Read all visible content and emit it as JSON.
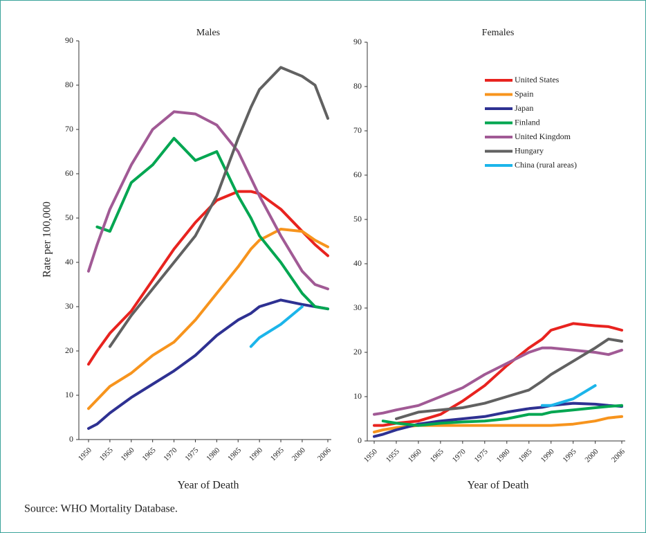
{
  "chart_data": [
    {
      "type": "line",
      "title": "Males",
      "ylabel": "Rate per 100,000",
      "xlabel": "Year of Death",
      "x": [
        1950,
        1952,
        1955,
        1960,
        1965,
        1970,
        1975,
        1980,
        1985,
        1988,
        1990,
        1995,
        2000,
        2003,
        2006
      ],
      "xlim": [
        1950,
        2006
      ],
      "xticks": [
        1950,
        1955,
        1960,
        1965,
        1970,
        1975,
        1980,
        1985,
        1990,
        1995,
        2000,
        2006
      ],
      "ylim": [
        0,
        90
      ],
      "yticks": [
        0,
        10,
        20,
        30,
        40,
        50,
        60,
        70,
        80,
        90
      ],
      "legend": false,
      "series": [
        {
          "color": "#e8231f",
          "values": [
            17,
            20,
            24,
            29,
            36,
            43,
            49,
            54,
            56,
            56,
            55.5,
            52,
            47,
            44,
            41.5
          ]
        },
        {
          "color": "#f7941d",
          "values": [
            7,
            9,
            12,
            15,
            19,
            22,
            27,
            33,
            39,
            43,
            45,
            47.5,
            47,
            45,
            43.5
          ]
        },
        {
          "color": "#2e3192",
          "values": [
            2.5,
            3.5,
            6,
            9.5,
            12.5,
            15.5,
            19,
            23.5,
            27,
            28.5,
            30,
            31.5,
            30.5,
            30,
            29.5
          ]
        },
        {
          "color": "#00a651",
          "values": [
            null,
            48,
            47,
            58,
            62,
            68,
            63,
            65,
            55,
            50,
            46,
            40,
            33,
            30,
            29.5
          ]
        },
        {
          "color": "#a15a95",
          "values": [
            38,
            44,
            52,
            62,
            70,
            74,
            73.5,
            71,
            65,
            59,
            55,
            46,
            38,
            35,
            34
          ]
        },
        {
          "color": "#616161",
          "values": [
            null,
            null,
            21,
            28,
            34,
            40,
            46,
            55,
            68,
            75,
            79,
            84,
            82,
            80,
            72.5
          ]
        },
        {
          "color": "#1cb5ea",
          "values": [
            null,
            null,
            null,
            null,
            null,
            null,
            null,
            null,
            null,
            21,
            23,
            26,
            30,
            null,
            null
          ]
        }
      ]
    },
    {
      "type": "line",
      "title": "Females",
      "xlabel": "Year of Death",
      "x": [
        1950,
        1952,
        1955,
        1960,
        1965,
        1970,
        1975,
        1980,
        1985,
        1988,
        1990,
        1995,
        2000,
        2003,
        2006
      ],
      "xlim": [
        1950,
        2006
      ],
      "xticks": [
        1950,
        1955,
        1960,
        1965,
        1970,
        1975,
        1980,
        1985,
        1990,
        1995,
        2000,
        2006
      ],
      "ylim": [
        0,
        90
      ],
      "yticks": [
        0,
        10,
        20,
        30,
        40,
        50,
        60,
        70,
        80,
        90
      ],
      "legend": true,
      "series": [
        {
          "name": "United States",
          "color": "#e8231f",
          "values": [
            3.5,
            3.5,
            4,
            4.5,
            6,
            9,
            12.5,
            17,
            21,
            23,
            25,
            26.5,
            26,
            25.8,
            25
          ]
        },
        {
          "name": "Spain",
          "color": "#f7941d",
          "values": [
            2,
            2.5,
            3,
            3.5,
            3.5,
            3.5,
            3.5,
            3.5,
            3.5,
            3.5,
            3.5,
            3.8,
            4.5,
            5.2,
            5.5
          ]
        },
        {
          "name": "Japan",
          "color": "#2e3192",
          "values": [
            1,
            1.5,
            2.5,
            3.8,
            4.5,
            5,
            5.5,
            6.5,
            7.3,
            7.6,
            8,
            8.5,
            8.3,
            8,
            7.8
          ]
        },
        {
          "name": "Finland",
          "color": "#00a651",
          "values": [
            null,
            4.5,
            4,
            3.5,
            4,
            4.3,
            4.5,
            5,
            6,
            6,
            6.5,
            7,
            7.5,
            7.8,
            8
          ]
        },
        {
          "name": "United Kingdom",
          "color": "#a15a95",
          "values": [
            6,
            6.3,
            7,
            8,
            10,
            12,
            15,
            17.5,
            20,
            21,
            21,
            20.5,
            20,
            19.5,
            20.5
          ]
        },
        {
          "name": "Hungary",
          "color": "#616161",
          "values": [
            null,
            null,
            5,
            6.5,
            7,
            7.5,
            8.5,
            10,
            11.5,
            13.5,
            15,
            18,
            21,
            23,
            22.5
          ]
        },
        {
          "name": "China (rural areas)",
          "color": "#1cb5ea",
          "values": [
            null,
            null,
            null,
            null,
            null,
            null,
            null,
            null,
            null,
            8,
            8,
            9.5,
            12.5,
            null,
            null
          ]
        }
      ]
    }
  ],
  "source": "Source: WHO Mortality Database."
}
